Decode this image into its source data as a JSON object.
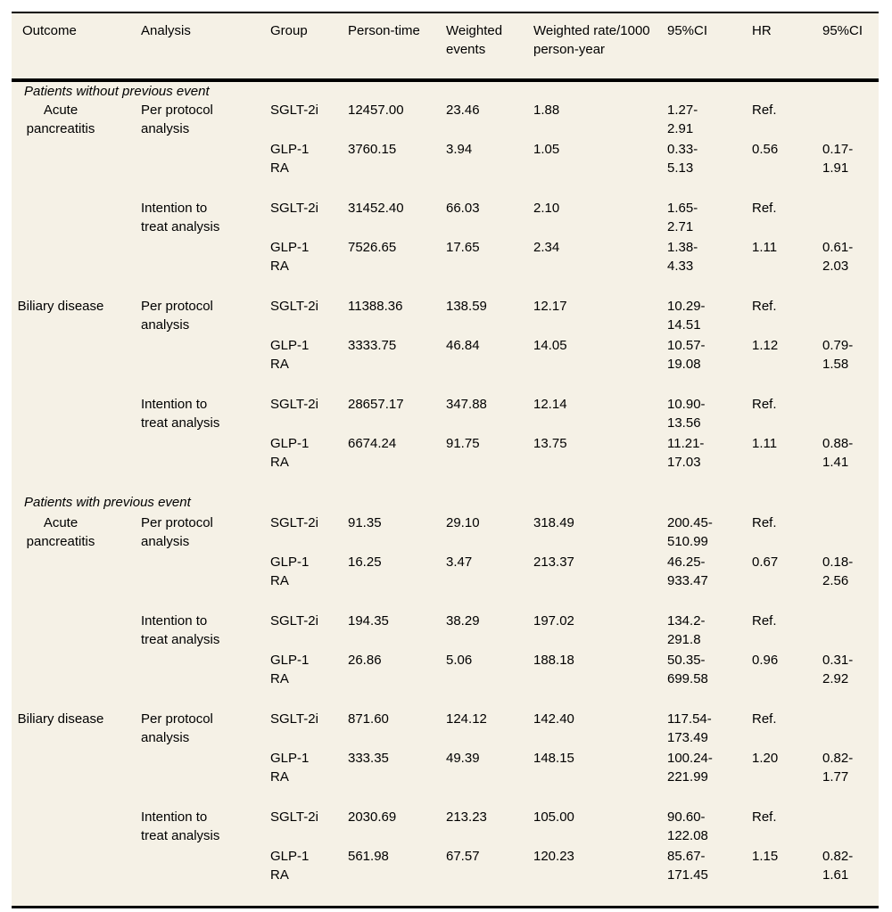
{
  "colors": {
    "page_background": "#ffffff",
    "table_background": "#f5f1e6",
    "rule_color": "#000000",
    "text_color": "#000000"
  },
  "table": {
    "columns": [
      "Outcome",
      "Analysis",
      "Group",
      "Person-time",
      "Weighted events",
      "Weighted rate/1000 person-year",
      "95%CI",
      "HR",
      "95%CI"
    ],
    "sections": [
      {
        "label": "Patients without previous event",
        "outcomes": [
          {
            "outcome": "Acute pancreatitis",
            "analyses": [
              {
                "analysis": "Per protocol analysis",
                "rows": [
                  {
                    "group": "SGLT-2i",
                    "person_time": "12457.00",
                    "weighted_events": "23.46",
                    "weighted_rate": "1.88",
                    "ci": "1.27-2.91",
                    "hr": "Ref.",
                    "hr_ci": ""
                  },
                  {
                    "group": "GLP-1 RA",
                    "person_time": "3760.15",
                    "weighted_events": "3.94",
                    "weighted_rate": "1.05",
                    "ci": "0.33-5.13",
                    "hr": "0.56",
                    "hr_ci": "0.17-1.91"
                  }
                ]
              },
              {
                "analysis": "Intention to treat analysis",
                "rows": [
                  {
                    "group": "SGLT-2i",
                    "person_time": "31452.40",
                    "weighted_events": "66.03",
                    "weighted_rate": "2.10",
                    "ci": "1.65-2.71",
                    "hr": "Ref.",
                    "hr_ci": ""
                  },
                  {
                    "group": "GLP-1 RA",
                    "person_time": "7526.65",
                    "weighted_events": "17.65",
                    "weighted_rate": "2.34",
                    "ci": "1.38-4.33",
                    "hr": "1.11",
                    "hr_ci": "0.61-2.03"
                  }
                ]
              }
            ]
          },
          {
            "outcome": "Biliary disease",
            "analyses": [
              {
                "analysis": "Per protocol analysis",
                "rows": [
                  {
                    "group": "SGLT-2i",
                    "person_time": "11388.36",
                    "weighted_events": "138.59",
                    "weighted_rate": "12.17",
                    "ci": "10.29-14.51",
                    "hr": "Ref.",
                    "hr_ci": ""
                  },
                  {
                    "group": "GLP-1 RA",
                    "person_time": "3333.75",
                    "weighted_events": "46.84",
                    "weighted_rate": "14.05",
                    "ci": "10.57-19.08",
                    "hr": "1.12",
                    "hr_ci": "0.79-1.58"
                  }
                ]
              },
              {
                "analysis": "Intention to treat analysis",
                "rows": [
                  {
                    "group": "SGLT-2i",
                    "person_time": "28657.17",
                    "weighted_events": "347.88",
                    "weighted_rate": "12.14",
                    "ci": "10.90-13.56",
                    "hr": "Ref.",
                    "hr_ci": ""
                  },
                  {
                    "group": "GLP-1 RA",
                    "person_time": "6674.24",
                    "weighted_events": "91.75",
                    "weighted_rate": "13.75",
                    "ci": "11.21-17.03",
                    "hr": "1.11",
                    "hr_ci": "0.88-1.41"
                  }
                ]
              }
            ]
          }
        ]
      },
      {
        "label": "Patients with previous event",
        "outcomes": [
          {
            "outcome": "Acute pancreatitis",
            "analyses": [
              {
                "analysis": "Per protocol analysis",
                "rows": [
                  {
                    "group": "SGLT-2i",
                    "person_time": "91.35",
                    "weighted_events": "29.10",
                    "weighted_rate": "318.49",
                    "ci": "200.45-510.99",
                    "hr": "Ref.",
                    "hr_ci": ""
                  },
                  {
                    "group": "GLP-1 RA",
                    "person_time": "16.25",
                    "weighted_events": "3.47",
                    "weighted_rate": "213.37",
                    "ci": "46.25-933.47",
                    "hr": "0.67",
                    "hr_ci": "0.18-2.56"
                  }
                ]
              },
              {
                "analysis": "Intention to treat analysis",
                "rows": [
                  {
                    "group": "SGLT-2i",
                    "person_time": "194.35",
                    "weighted_events": "38.29",
                    "weighted_rate": "197.02",
                    "ci": "134.2-291.8",
                    "hr": "Ref.",
                    "hr_ci": ""
                  },
                  {
                    "group": "GLP-1 RA",
                    "person_time": "26.86",
                    "weighted_events": "5.06",
                    "weighted_rate": "188.18",
                    "ci": "50.35-699.58",
                    "hr": "0.96",
                    "hr_ci": "0.31-2.92"
                  }
                ]
              }
            ]
          },
          {
            "outcome": "Biliary disease",
            "analyses": [
              {
                "analysis": "Per protocol analysis",
                "rows": [
                  {
                    "group": "SGLT-2i",
                    "person_time": "871.60",
                    "weighted_events": "124.12",
                    "weighted_rate": "142.40",
                    "ci": "117.54-173.49",
                    "hr": "Ref.",
                    "hr_ci": ""
                  },
                  {
                    "group": "GLP-1 RA",
                    "person_time": "333.35",
                    "weighted_events": "49.39",
                    "weighted_rate": "148.15",
                    "ci": "100.24-221.99",
                    "hr": "1.20",
                    "hr_ci": "0.82-1.77"
                  }
                ]
              },
              {
                "analysis": "Intention to treat analysis",
                "rows": [
                  {
                    "group": "SGLT-2i",
                    "person_time": "2030.69",
                    "weighted_events": "213.23",
                    "weighted_rate": "105.00",
                    "ci": "90.60-122.08",
                    "hr": "Ref.",
                    "hr_ci": ""
                  },
                  {
                    "group": "GLP-1 RA",
                    "person_time": "561.98",
                    "weighted_events": "67.57",
                    "weighted_rate": "120.23",
                    "ci": "85.67-171.45",
                    "hr": "1.15",
                    "hr_ci": "0.82-1.61"
                  }
                ]
              }
            ]
          }
        ]
      }
    ]
  }
}
